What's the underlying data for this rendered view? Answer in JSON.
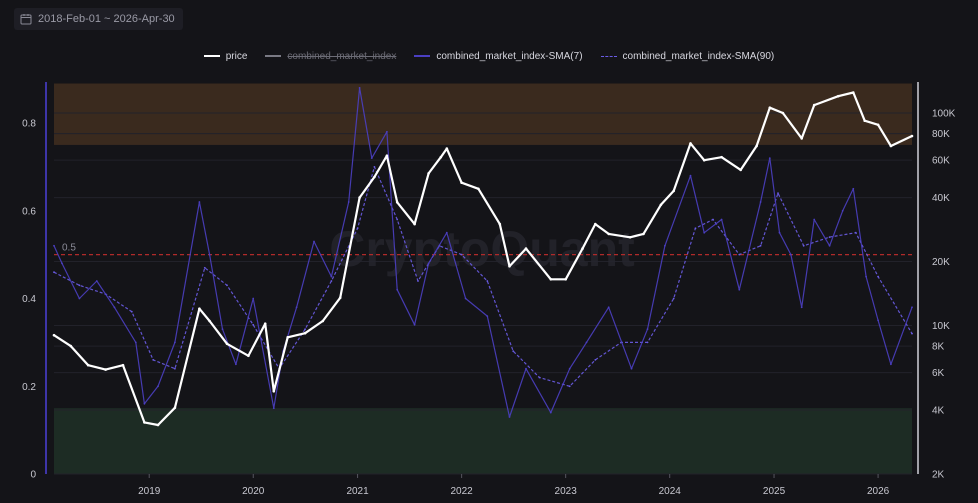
{
  "date_range": {
    "label": "2018-Feb-01 ~ 2026-Apr-30",
    "icon": "calendar-icon"
  },
  "legend": [
    {
      "label": "price",
      "color": "#ffffff",
      "style": "solid",
      "active": true
    },
    {
      "label": "combined_market_index",
      "color": "#7a7a84",
      "style": "solid",
      "active": false
    },
    {
      "label": "combined_market_index-SMA(7)",
      "color": "#4b3fc2",
      "style": "solid",
      "active": true
    },
    {
      "label": "combined_market_index-SMA(90)",
      "color": "#6a5ce6",
      "style": "dashed",
      "active": true
    }
  ],
  "watermark": "CryptoQuant",
  "chart_data": {
    "type": "line",
    "x_ticks": [
      "2019",
      "2020",
      "2021",
      "2022",
      "2023",
      "2024",
      "2025",
      "2026"
    ],
    "x_range": [
      "2018-02-01",
      "2026-04-30"
    ],
    "y_left": {
      "ticks": [
        "0",
        "0.2",
        "0.4",
        "0.6",
        "0.8"
      ],
      "range": [
        0,
        0.8
      ]
    },
    "y_right": {
      "scale": "log",
      "ticks": [
        "2K",
        "4K",
        "6K",
        "8K",
        "10K",
        "20K",
        "40K",
        "60K",
        "80K",
        "100K"
      ],
      "range": [
        2000,
        140000
      ]
    },
    "threshold_line": {
      "value": 0.5,
      "label": "0.5",
      "color": "#b02a2a"
    },
    "zones": [
      {
        "from": 0.75,
        "to": 0.89,
        "color": "#3a2a1e"
      },
      {
        "from": 0,
        "to": 0.15,
        "color": "#1d2c24"
      }
    ],
    "series": [
      {
        "name": "price",
        "axis": "right",
        "color": "#ffffff",
        "x": [
          "2018-02-01",
          "2018-04-01",
          "2018-06-01",
          "2018-08-01",
          "2018-10-01",
          "2018-12-15",
          "2019-02-01",
          "2019-04-01",
          "2019-06-26",
          "2019-08-01",
          "2019-10-01",
          "2019-12-15",
          "2020-02-12",
          "2020-03-13",
          "2020-05-01",
          "2020-07-01",
          "2020-09-01",
          "2020-11-01",
          "2021-01-08",
          "2021-03-01",
          "2021-04-14",
          "2021-05-20",
          "2021-07-20",
          "2021-09-07",
          "2021-10-20",
          "2021-11-10",
          "2022-01-01",
          "2022-03-01",
          "2022-05-15",
          "2022-06-18",
          "2022-08-15",
          "2022-11-10",
          "2023-01-01",
          "2023-03-01",
          "2023-04-15",
          "2023-06-01",
          "2023-08-15",
          "2023-10-01",
          "2023-12-01",
          "2024-01-15",
          "2024-03-14",
          "2024-05-01",
          "2024-07-01",
          "2024-09-06",
          "2024-11-01",
          "2024-12-17",
          "2025-02-01",
          "2025-04-08",
          "2025-05-22",
          "2025-08-14",
          "2025-10-06",
          "2025-11-15",
          "2026-01-01",
          "2026-02-15",
          "2026-04-30"
        ],
        "y": [
          9000,
          8000,
          6500,
          6200,
          6500,
          3500,
          3400,
          4100,
          12000,
          10500,
          8200,
          7200,
          10200,
          4900,
          8800,
          9200,
          10500,
          13500,
          40000,
          50000,
          63000,
          38000,
          30000,
          52000,
          62000,
          68000,
          47000,
          44000,
          30000,
          19000,
          23000,
          16500,
          16500,
          23000,
          30000,
          27000,
          26000,
          27000,
          37000,
          43000,
          72000,
          60000,
          62000,
          54000,
          70000,
          106000,
          100000,
          76000,
          109000,
          120000,
          125000,
          92000,
          88000,
          70000,
          78000
        ]
      },
      {
        "name": "combined_market_index-SMA(7)",
        "axis": "left",
        "color": "#4b3fc2",
        "x": [
          "2018-02-01",
          "2018-03-01",
          "2018-05-01",
          "2018-07-01",
          "2018-09-01",
          "2018-11-15",
          "2018-12-15",
          "2019-02-01",
          "2019-04-01",
          "2019-06-26",
          "2019-08-01",
          "2019-09-15",
          "2019-11-01",
          "2020-01-01",
          "2020-03-13",
          "2020-04-15",
          "2020-06-01",
          "2020-08-01",
          "2020-10-01",
          "2020-12-01",
          "2021-01-08",
          "2021-02-20",
          "2021-04-14",
          "2021-05-20",
          "2021-07-20",
          "2021-09-07",
          "2021-11-10",
          "2022-01-15",
          "2022-04-01",
          "2022-06-18",
          "2022-08-15",
          "2022-11-10",
          "2023-01-15",
          "2023-03-15",
          "2023-06-01",
          "2023-08-20",
          "2023-10-15",
          "2023-12-15",
          "2024-03-14",
          "2024-05-01",
          "2024-07-01",
          "2024-09-01",
          "2024-11-15",
          "2024-12-17",
          "2025-01-20",
          "2025-03-01",
          "2025-04-08",
          "2025-05-22",
          "2025-07-15",
          "2025-08-30",
          "2025-10-06",
          "2025-11-20",
          "2026-01-01",
          "2026-02-15",
          "2026-04-30"
        ],
        "y": [
          0.52,
          0.48,
          0.4,
          0.44,
          0.38,
          0.3,
          0.16,
          0.2,
          0.3,
          0.62,
          0.5,
          0.33,
          0.25,
          0.4,
          0.15,
          0.28,
          0.38,
          0.53,
          0.45,
          0.62,
          0.88,
          0.72,
          0.78,
          0.42,
          0.34,
          0.48,
          0.55,
          0.4,
          0.36,
          0.13,
          0.24,
          0.14,
          0.24,
          0.3,
          0.38,
          0.24,
          0.33,
          0.52,
          0.68,
          0.55,
          0.58,
          0.42,
          0.62,
          0.72,
          0.55,
          0.5,
          0.38,
          0.58,
          0.52,
          0.6,
          0.65,
          0.45,
          0.35,
          0.25,
          0.38
        ]
      },
      {
        "name": "combined_market_index-SMA(90)",
        "axis": "left",
        "color": "#6a5ce6",
        "style": "dashed",
        "x": [
          "2018-02-01",
          "2018-05-01",
          "2018-08-01",
          "2018-11-01",
          "2019-01-15",
          "2019-04-01",
          "2019-07-15",
          "2019-10-01",
          "2020-01-01",
          "2020-04-01",
          "2020-07-01",
          "2020-10-01",
          "2021-01-01",
          "2021-03-01",
          "2021-05-20",
          "2021-08-01",
          "2021-10-15",
          "2022-01-01",
          "2022-04-01",
          "2022-07-01",
          "2022-10-01",
          "2023-01-15",
          "2023-04-15",
          "2023-07-15",
          "2023-10-15",
          "2024-01-15",
          "2024-03-31",
          "2024-06-01",
          "2024-09-01",
          "2024-11-15",
          "2025-01-15",
          "2025-04-15",
          "2025-07-15",
          "2025-10-15",
          "2026-01-01",
          "2026-04-30"
        ],
        "y": [
          0.46,
          0.43,
          0.41,
          0.37,
          0.26,
          0.24,
          0.47,
          0.43,
          0.34,
          0.24,
          0.33,
          0.44,
          0.56,
          0.7,
          0.58,
          0.44,
          0.52,
          0.5,
          0.44,
          0.28,
          0.22,
          0.2,
          0.26,
          0.3,
          0.3,
          0.4,
          0.56,
          0.58,
          0.5,
          0.52,
          0.64,
          0.52,
          0.54,
          0.55,
          0.45,
          0.32
        ]
      }
    ]
  }
}
